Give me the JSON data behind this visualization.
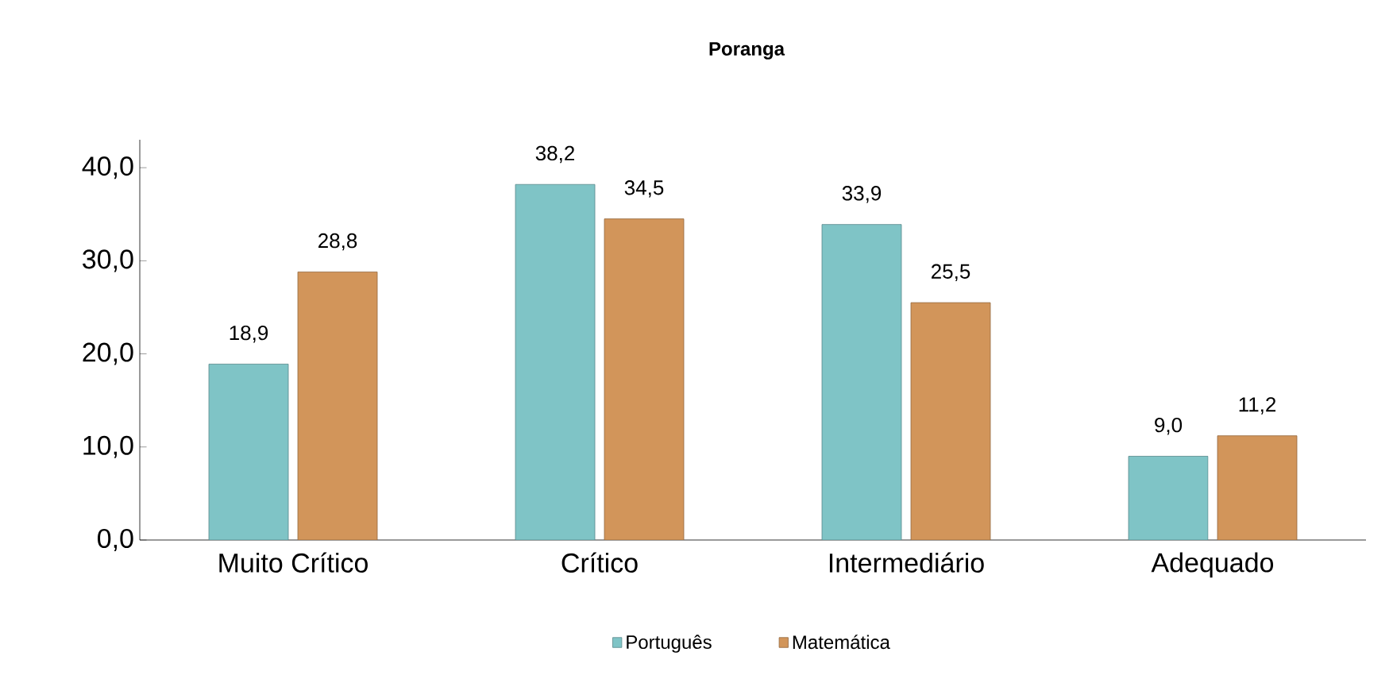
{
  "chart_data": {
    "type": "bar",
    "title": "Poranga",
    "categories": [
      "Muito Crítico",
      "Crítico",
      "Intermediário",
      "Adequado"
    ],
    "series": [
      {
        "name": "Português",
        "color": "#7fc4c6",
        "values": [
          18.9,
          38.2,
          33.9,
          9.0
        ],
        "value_labels": [
          "18,9",
          "38,2",
          "33,9",
          "9,0"
        ]
      },
      {
        "name": "Matemática",
        "color": "#d2955a",
        "values": [
          28.8,
          34.5,
          25.5,
          11.2
        ],
        "value_labels": [
          "28,8",
          "34,5",
          "25,5",
          "11,2"
        ]
      }
    ],
    "ylim": [
      0,
      43
    ],
    "yticks": [
      {
        "value": 0,
        "label": "0,0"
      },
      {
        "value": 10,
        "label": "10,0"
      },
      {
        "value": 20,
        "label": "20,0"
      },
      {
        "value": 30,
        "label": "30,0"
      },
      {
        "value": 40,
        "label": "40,0"
      }
    ],
    "legend": "bottom"
  }
}
